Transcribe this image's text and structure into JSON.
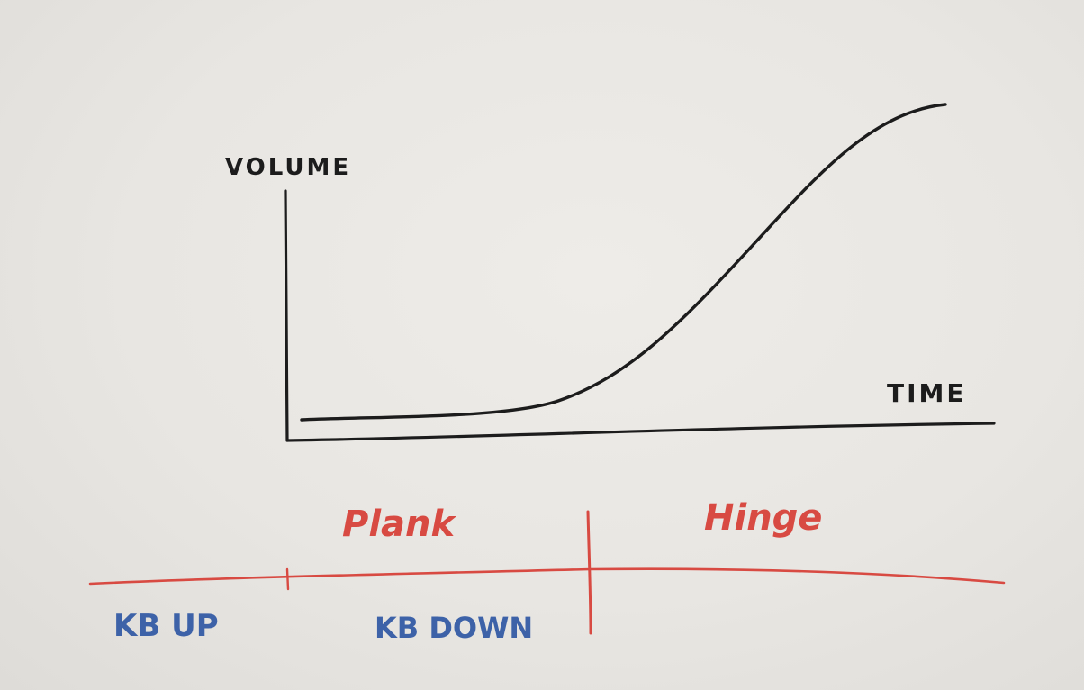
{
  "axes": {
    "y_label": "VOLUME",
    "x_label": "TIME"
  },
  "timeline": {
    "phases": [
      {
        "label": "Plank",
        "color": "#d84a42"
      },
      {
        "label": "Hinge",
        "color": "#d84a42"
      }
    ],
    "segments": [
      {
        "label": "KB UP",
        "color": "#3d62a8"
      },
      {
        "label": "KB DOWN",
        "color": "#3d62a8"
      }
    ]
  },
  "colors": {
    "ink": "#1c1c1c",
    "red": "#d84a42",
    "blue": "#3d62a8",
    "board": "#e8e6e2"
  }
}
